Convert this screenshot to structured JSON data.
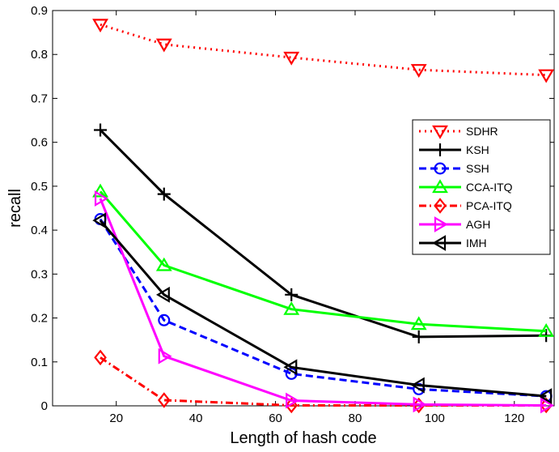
{
  "chart_data": {
    "type": "line",
    "title": "",
    "xlabel": "Length of hash code",
    "ylabel": "recall",
    "xlim": [
      4,
      130
    ],
    "ylim": [
      0,
      0.9
    ],
    "xticks": [
      20,
      40,
      60,
      80,
      100,
      120
    ],
    "yticks": [
      0,
      0.1,
      0.2,
      0.3,
      0.4,
      0.5,
      0.6,
      0.7,
      0.8,
      0.9
    ],
    "xtick_labels": [
      "20",
      "40",
      "60",
      "80",
      "100",
      "120"
    ],
    "ytick_labels": [
      "0",
      "0.1",
      "0.2",
      "0.3",
      "0.4",
      "0.5",
      "0.6",
      "0.7",
      "0.8",
      "0.9"
    ],
    "grid": false,
    "legend_position": "right",
    "x": [
      16,
      32,
      64,
      96,
      128
    ],
    "series": [
      {
        "name": "SDHR",
        "values": [
          0.868,
          0.823,
          0.793,
          0.765,
          0.753
        ],
        "color": "#ff0000",
        "dash": "dotted",
        "marker": "triangle-down"
      },
      {
        "name": "KSH",
        "values": [
          0.628,
          0.482,
          0.253,
          0.157,
          0.16
        ],
        "color": "#000000",
        "dash": "solid",
        "marker": "plus"
      },
      {
        "name": "SSH",
        "values": [
          0.425,
          0.195,
          0.073,
          0.038,
          0.022
        ],
        "color": "#0000ff",
        "dash": "dashed",
        "marker": "circle"
      },
      {
        "name": "CCA-ITQ",
        "values": [
          0.488,
          0.32,
          0.22,
          0.186,
          0.17
        ],
        "color": "#00ff00",
        "dash": "solid",
        "marker": "triangle-up"
      },
      {
        "name": "PCA-ITQ",
        "values": [
          0.11,
          0.013,
          0.001,
          0.001,
          0.001
        ],
        "color": "#ff0000",
        "dash": "dashdot",
        "marker": "diamond"
      },
      {
        "name": "AGH",
        "values": [
          0.472,
          0.113,
          0.012,
          0.003,
          0.001
        ],
        "color": "#ff00ff",
        "dash": "solid",
        "marker": "triangle-right"
      },
      {
        "name": "IMH",
        "values": [
          0.422,
          0.253,
          0.088,
          0.047,
          0.022
        ],
        "color": "#000000",
        "dash": "solid",
        "marker": "triangle-left"
      }
    ]
  }
}
